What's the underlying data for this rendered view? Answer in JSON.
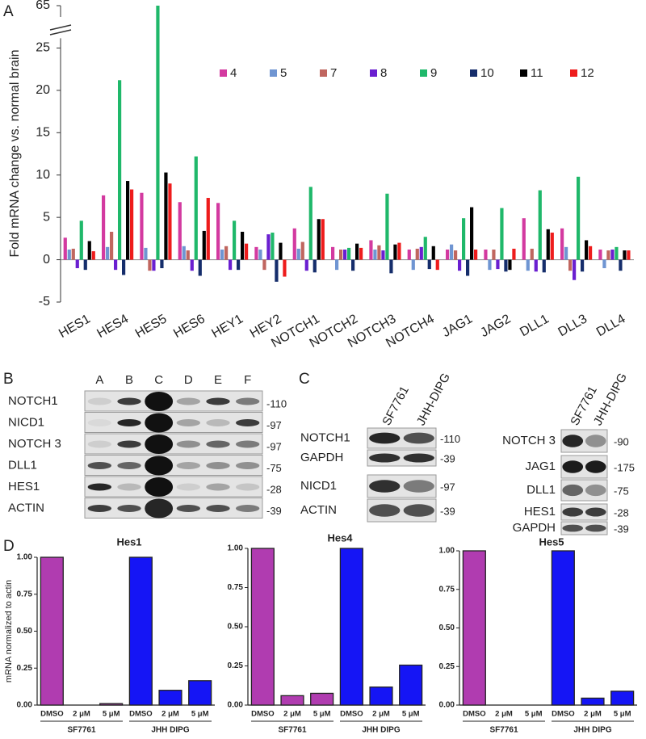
{
  "panel_labels": [
    "A",
    "B",
    "C",
    "D"
  ],
  "chart_data": [
    {
      "type": "bar",
      "y_label": "Fold mRNA change vs. normal brain",
      "categories": [
        "HES1",
        "HES4",
        "HES5",
        "HES6",
        "HEY1",
        "HEY2",
        "NOTCH1",
        "NOTCH2",
        "NOTCH3",
        "NOTCH4",
        "JAG1",
        "JAG2",
        "DLL1",
        "DLL3",
        "DLL4"
      ],
      "series": [
        {
          "name": "4",
          "color": "#d33aa0",
          "values": [
            2.6,
            7.6,
            7.9,
            6.8,
            6.7,
            1.5,
            3.7,
            1.5,
            2.3,
            1.2,
            1.2,
            1.2,
            4.9,
            3.7,
            1.2
          ]
        },
        {
          "name": "5",
          "color": "#6f95d2",
          "values": [
            1.2,
            1.5,
            1.4,
            1.6,
            1.2,
            1.2,
            1.3,
            -1.2,
            1.2,
            -1.2,
            1.8,
            -1.2,
            -1.3,
            1.5,
            -1.0
          ]
        },
        {
          "name": "7",
          "color": "#c0665f",
          "values": [
            1.3,
            3.3,
            -1.3,
            1.1,
            1.6,
            -1.2,
            2.1,
            1.2,
            1.7,
            1.3,
            1.1,
            1.2,
            1.3,
            -1.3,
            1.1
          ]
        },
        {
          "name": "8",
          "color": "#6a1fd0",
          "values": [
            -1.0,
            -1.2,
            -1.3,
            -1.3,
            -1.2,
            3.0,
            -1.3,
            1.2,
            1.1,
            1.5,
            -1.3,
            -1.1,
            -1.4,
            -2.4,
            1.2
          ]
        },
        {
          "name": "9",
          "color": "#1fb86a",
          "values": [
            4.6,
            21.2,
            65,
            12.2,
            4.6,
            3.2,
            8.6,
            1.4,
            7.8,
            2.7,
            4.9,
            6.1,
            8.2,
            9.8,
            1.5
          ]
        },
        {
          "name": "10",
          "color": "#152d6b",
          "values": [
            -1.2,
            -1.8,
            -1.0,
            -1.9,
            -1.2,
            -2.6,
            -1.5,
            -1.3,
            -1.6,
            -1.1,
            -1.9,
            -1.4,
            -1.5,
            -1.4,
            -1.3
          ]
        },
        {
          "name": "11",
          "color": "#000000",
          "values": [
            2.2,
            9.3,
            10.3,
            3.4,
            3.3,
            2.0,
            4.8,
            1.9,
            1.8,
            1.6,
            6.2,
            -1.2,
            3.6,
            2.3,
            1.1
          ]
        },
        {
          "name": "12",
          "color": "#ee1c1c",
          "values": [
            1.0,
            8.3,
            9.0,
            7.3,
            1.9,
            -2.0,
            4.8,
            1.4,
            2.0,
            -1.2,
            1.2,
            1.3,
            3.2,
            1.6,
            1.1
          ]
        }
      ],
      "ylim": [
        -5,
        65
      ],
      "yticks": [
        -5,
        0,
        5,
        10,
        15,
        20,
        25,
        65
      ],
      "y_axis_break": true,
      "legend": "top"
    },
    {
      "type": "bar",
      "title": "Hes1",
      "y_label": "mRNA normalized to actin",
      "categories": [
        "DMSO",
        "2 μM",
        "5 μM",
        "DMSO",
        "2 μM",
        "5 μM"
      ],
      "groups": [
        "SF7761",
        "JHH DIPG"
      ],
      "values": [
        1.0,
        0,
        0.01,
        1.0,
        0.1,
        0.165
      ],
      "colors": [
        "#b03cb0",
        "#b03cb0",
        "#b03cb0",
        "#1515f5",
        "#1515f5",
        "#1515f5"
      ],
      "ylim": [
        0,
        1
      ],
      "yticks": [
        {
          "value": 0,
          "label": "0.00"
        },
        0.25,
        {
          "value": 0.5,
          "label": "0.50"
        },
        0.75,
        {
          "value": 1,
          "label": "1.00"
        }
      ]
    },
    {
      "type": "bar",
      "title": "Hes4",
      "categories": [
        "DMSO",
        "2 μM",
        "5 μM",
        "DMSO",
        "2 μM",
        "5 μM"
      ],
      "groups": [
        "SF7761",
        "JHH DIPG"
      ],
      "values": [
        1.0,
        0.06,
        0.075,
        1.0,
        0.115,
        0.255
      ],
      "colors": [
        "#b03cb0",
        "#b03cb0",
        "#b03cb0",
        "#1515f5",
        "#1515f5",
        "#1515f5"
      ],
      "ylim": [
        0,
        1
      ],
      "yticks": [
        {
          "value": 0,
          "label": "0.00"
        },
        0.25,
        {
          "value": 0.5,
          "label": "0.50"
        },
        0.75,
        {
          "value": 1,
          "label": "1.00"
        }
      ]
    },
    {
      "type": "bar",
      "title": "Hes5",
      "categories": [
        "DMSO",
        "2 μM",
        "5 μM",
        "DMSO",
        "2 μM",
        "5 μM"
      ],
      "groups": [
        "SF7761",
        "JHH DIPG"
      ],
      "values": [
        1.0,
        0,
        0,
        1.0,
        0.045,
        0.09
      ],
      "colors": [
        "#b03cb0",
        "#b03cb0",
        "#b03cb0",
        "#1515f5",
        "#1515f5",
        "#1515f5"
      ],
      "ylim": [
        0,
        1
      ],
      "yticks": [
        {
          "value": 0,
          "label": "0.00"
        },
        0.25,
        {
          "value": 0.5,
          "label": "0.50"
        },
        0.75,
        {
          "value": 1,
          "label": "1.00"
        }
      ]
    }
  ],
  "blot_b": {
    "lanes": [
      "A",
      "B",
      "C",
      "D",
      "E",
      "F"
    ],
    "rows": [
      {
        "label": "NOTCH1",
        "marker": "-110"
      },
      {
        "label": "NICD1",
        "marker": "-97"
      },
      {
        "label": "NOTCH 3",
        "marker": "-97"
      },
      {
        "label": "DLL1",
        "marker": "-75"
      },
      {
        "label": "HES1",
        "marker": "-28"
      },
      {
        "label": "ACTIN",
        "marker": "-39"
      }
    ]
  },
  "blot_c": [
    {
      "lanes": [
        "SF7761",
        "JHH-DIPG"
      ],
      "rows": [
        {
          "label": "NOTCH1",
          "marker": "-110"
        },
        {
          "label": "GAPDH",
          "marker": "-39"
        },
        {
          "label": "NICD1",
          "marker": "-97"
        },
        {
          "label": "ACTIN",
          "marker": "-39"
        }
      ]
    },
    {
      "lanes": [
        "SF7761",
        "JHH-DIPG"
      ],
      "rows": [
        {
          "label": "NOTCH 3",
          "marker": "-90"
        },
        {
          "label": "JAG1",
          "marker": "-175"
        },
        {
          "label": "DLL1",
          "marker": "-75"
        },
        {
          "label": "HES1",
          "marker": "-28"
        },
        {
          "label": "GAPDH",
          "marker": "-39"
        }
      ]
    }
  ]
}
